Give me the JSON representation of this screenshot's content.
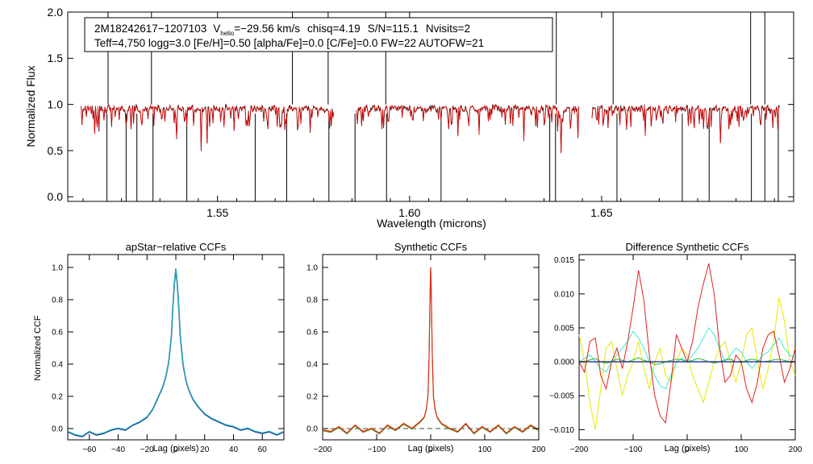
{
  "colors": {
    "spectrum": "#000000",
    "model": "#e00000",
    "ccf_main": "#1c2f8f",
    "ccf_cyan": "#1fbcbc",
    "ccf_red": "#e02020",
    "ccf_orange": "#e07818",
    "ccf_green": "#2fb82f",
    "ccf_yellow": "#e8e800",
    "ccf_aqua": "#40e8d0",
    "zero_line": "#444444"
  },
  "header": {
    "star_id": "2M18242617−1207103",
    "vhelio_label": "V",
    "vhelio_sub": "helio",
    "vhelio_value": "=−29.56 km/s",
    "chisq": "chisq=4.19",
    "sn": "S/N=115.1",
    "nvisits": "Nvisits=2",
    "params": "Teff=4,750 logg=3.0 [Fe/H]=0.50 [alpha/Fe]=0.0 [C/Fe]=0.0 FW=22 AUTOFW=21"
  },
  "chart_data": [
    {
      "id": "spectrum",
      "type": "line",
      "title": "",
      "xlabel": "Wavelength (microns)",
      "ylabel": "Normalized Flux",
      "xlim": [
        1.511,
        1.7
      ],
      "ylim": [
        -0.05,
        2.0
      ],
      "xticks": [
        1.55,
        1.6,
        1.65
      ],
      "xtick_labels": [
        "1.55",
        "1.60",
        "1.65"
      ],
      "yticks": [
        0.0,
        0.5,
        1.0,
        1.5,
        2.0
      ],
      "ytick_labels": [
        "0.0",
        "0.5",
        "1.0",
        "1.5",
        "2.0"
      ],
      "chip_ranges": [
        [
          1.5145,
          1.5805
        ],
        [
          1.5862,
          1.6442
        ],
        [
          1.6475,
          1.6965
        ]
      ],
      "series": [
        {
          "name": "observed",
          "color": "#000000"
        },
        {
          "name": "model",
          "color": "#e00000"
        }
      ],
      "spike_lines_up": [
        1.5215,
        1.5328,
        1.5695,
        1.5788,
        1.5938,
        1.6382,
        1.653,
        1.6888,
        1.6925
      ],
      "spike_lines_down": [
        1.5212,
        1.5262,
        1.529,
        1.5332,
        1.542,
        1.5598,
        1.568,
        1.579,
        1.5858,
        1.594,
        1.6082,
        1.6365,
        1.638,
        1.654,
        1.671,
        1.678,
        1.689,
        1.6925,
        1.696
      ]
    },
    {
      "id": "apstar-ccf",
      "type": "line",
      "title": "apStar−relative CCFs",
      "xlabel": "Lag (pixels)",
      "ylabel": "Normalized CCF",
      "xlim": [
        -75,
        75
      ],
      "ylim": [
        -0.07,
        1.08
      ],
      "xticks": [
        -60,
        -40,
        -20,
        0,
        20,
        40,
        60
      ],
      "xtick_labels": [
        "−60",
        "−40",
        "−20",
        "0",
        "20",
        "40",
        "60"
      ],
      "yticks": [
        0.0,
        0.2,
        0.4,
        0.6,
        0.8,
        1.0
      ],
      "ytick_labels": [
        "0.0",
        "0.2",
        "0.4",
        "0.6",
        "0.8",
        "1.0"
      ],
      "series": [
        {
          "name": "ccf-combined",
          "color": "#1c2f8f"
        },
        {
          "name": "ccf-visit",
          "color": "#1fbcbc"
        }
      ],
      "x": [
        -75,
        -70,
        -65,
        -60,
        -55,
        -50,
        -45,
        -40,
        -35,
        -30,
        -25,
        -20,
        -16,
        -12,
        -9,
        -7,
        -5,
        -3,
        -2,
        -1,
        0,
        1,
        2,
        3,
        5,
        7,
        9,
        12,
        16,
        20,
        25,
        30,
        35,
        40,
        45,
        50,
        55,
        60,
        65,
        70,
        75
      ],
      "values": [
        -0.02,
        -0.04,
        -0.05,
        -0.02,
        -0.04,
        -0.03,
        -0.01,
        0.0,
        -0.01,
        0.02,
        0.04,
        0.07,
        0.12,
        0.2,
        0.26,
        0.32,
        0.41,
        0.58,
        0.76,
        0.9,
        0.99,
        0.9,
        0.76,
        0.58,
        0.4,
        0.3,
        0.24,
        0.18,
        0.13,
        0.09,
        0.06,
        0.04,
        0.02,
        0.01,
        -0.01,
        0.0,
        -0.02,
        -0.03,
        -0.02,
        -0.04,
        -0.02
      ]
    },
    {
      "id": "synthetic-ccf",
      "type": "line",
      "title": "Synthetic CCFs",
      "xlabel": "Lag (pixels)",
      "ylabel": "",
      "xlim": [
        -200,
        200
      ],
      "ylim": [
        -0.07,
        1.08
      ],
      "xticks": [
        -200,
        -100,
        0,
        100,
        200
      ],
      "xtick_labels": [
        "−200",
        "−100",
        "0",
        "100",
        "200"
      ],
      "yticks": [
        0.0,
        0.2,
        0.4,
        0.6,
        0.8,
        1.0
      ],
      "ytick_labels": [
        "0.0",
        "0.2",
        "0.4",
        "0.6",
        "0.8",
        "1.0"
      ],
      "series": [
        {
          "name": "synthetic-red",
          "color": "#e02020"
        },
        {
          "name": "synthetic-orange",
          "color": "#e07818"
        },
        {
          "name": "synthetic-green",
          "color": "#2fb82f"
        }
      ],
      "x": [
        -200,
        -185,
        -170,
        -155,
        -140,
        -125,
        -110,
        -95,
        -80,
        -65,
        -50,
        -35,
        -20,
        -12,
        -8,
        -5,
        -3,
        -1,
        0,
        1,
        3,
        5,
        8,
        12,
        20,
        35,
        50,
        65,
        80,
        95,
        110,
        125,
        140,
        155,
        170,
        185,
        200
      ],
      "values": [
        -0.01,
        -0.02,
        0.01,
        -0.03,
        0.02,
        -0.02,
        0.0,
        -0.03,
        0.02,
        -0.01,
        0.03,
        0.0,
        0.04,
        0.07,
        0.12,
        0.2,
        0.45,
        0.85,
        1.0,
        0.85,
        0.45,
        0.2,
        0.12,
        0.07,
        0.03,
        0.0,
        -0.02,
        0.03,
        -0.03,
        0.01,
        -0.02,
        0.02,
        -0.03,
        0.01,
        -0.02,
        0.02,
        -0.01
      ],
      "zero_line": 0.0
    },
    {
      "id": "difference-ccf",
      "type": "line",
      "title": "Difference Synthetic CCFs",
      "xlabel": "Lag (pixels)",
      "ylabel": "",
      "xlim": [
        -200,
        200
      ],
      "ylim": [
        -0.0115,
        0.0158
      ],
      "xticks": [
        -200,
        -100,
        0,
        100,
        200
      ],
      "xtick_labels": [
        "−200",
        "−100",
        "0",
        "100",
        "200"
      ],
      "yticks": [
        -0.01,
        -0.005,
        0.0,
        0.005,
        0.01,
        0.015
      ],
      "ytick_labels": [
        "−0.010",
        "−0.005",
        "0.000",
        "0.005",
        "0.010",
        "0.015"
      ],
      "x": [
        -200,
        -190,
        -180,
        -170,
        -160,
        -150,
        -140,
        -130,
        -120,
        -110,
        -100,
        -90,
        -80,
        -70,
        -60,
        -50,
        -40,
        -30,
        -20,
        -10,
        0,
        10,
        20,
        30,
        40,
        50,
        60,
        70,
        80,
        90,
        100,
        110,
        120,
        130,
        140,
        150,
        160,
        170,
        180,
        190,
        200
      ],
      "series": [
        {
          "name": "diff-red",
          "color": "#e02020",
          "values": [
            0.0,
            -0.0015,
            0.003,
            0.0035,
            -0.002,
            -0.004,
            0.0,
            0.002,
            -0.001,
            0.003,
            0.008,
            0.0135,
            0.009,
            0.001,
            -0.005,
            -0.008,
            -0.009,
            -0.003,
            0.004,
            0.002,
            0.0,
            0.003,
            0.008,
            0.0115,
            0.0145,
            0.01,
            0.002,
            -0.003,
            -0.002,
            0.001,
            0.0,
            -0.004,
            -0.006,
            -0.003,
            0.002,
            0.004,
            0.0045,
            0.001,
            -0.003,
            -0.001,
            0.002
          ]
        },
        {
          "name": "diff-aqua",
          "color": "#40e8d0",
          "values": [
            0.0,
            0.0005,
            0.001,
            0.0,
            -0.001,
            -0.0015,
            0.0,
            0.001,
            0.002,
            0.003,
            0.0045,
            0.0035,
            0.002,
            0.0,
            -0.002,
            -0.0035,
            -0.004,
            -0.002,
            0.0,
            0.0005,
            0.0,
            0.001,
            0.002,
            0.0035,
            0.005,
            0.004,
            0.002,
            0.0,
            0.001,
            0.002,
            0.0015,
            0.0,
            -0.001,
            0.0,
            0.001,
            0.0015,
            0.0025,
            0.0035,
            0.002,
            0.001,
            0.0005
          ]
        },
        {
          "name": "diff-yellow",
          "color": "#e8e800",
          "values": [
            0.004,
            0.0,
            -0.006,
            -0.01,
            -0.004,
            0.002,
            0.003,
            -0.001,
            -0.005,
            -0.002,
            0.0,
            0.003,
            -0.001,
            -0.004,
            0.0,
            0.002,
            -0.002,
            -0.003,
            0.0,
            0.002,
            0.001,
            -0.002,
            -0.004,
            -0.006,
            -0.003,
            0.0,
            0.002,
            0.003,
            0.0,
            -0.003,
            0.0,
            0.004,
            0.005,
            0.0,
            -0.004,
            -0.001,
            0.003,
            0.0095,
            0.006,
            0.0,
            -0.002
          ]
        },
        {
          "name": "diff-green",
          "color": "#2fb82f",
          "values": [
            0.0,
            0.0,
            0.0003,
            0.0005,
            0.0,
            -0.0002,
            0.0,
            0.0004,
            0.0002,
            0.0,
            0.0003,
            0.0006,
            0.0002,
            0.0,
            -0.0004,
            -0.0003,
            0.0,
            0.0002,
            0.0004,
            0.0003,
            0.0,
            0.0002,
            0.0005,
            0.0003,
            0.0,
            -0.0002,
            0.0,
            0.0003,
            0.0004,
            0.0,
            -0.0001,
            0.0002,
            0.0004,
            0.0002,
            0.0,
            0.0001,
            0.0003,
            0.0004,
            0.0002,
            0.0,
            0.0
          ]
        },
        {
          "name": "diff-blue",
          "color": "#1c2f8f",
          "values": [
            0.0,
            0.0,
            0.0,
            0.0,
            0.0,
            0.0,
            0.0,
            0.0,
            0.0,
            0.0,
            0.0,
            0.0,
            0.0,
            0.0,
            0.0,
            0.0,
            0.0,
            0.0,
            0.0,
            0.0,
            0.0,
            0.0,
            0.0,
            0.0,
            0.0,
            0.0,
            0.0,
            0.0,
            0.0,
            0.0,
            0.0,
            0.0,
            0.0,
            0.0,
            0.0,
            0.0,
            0.0,
            0.0,
            0.0,
            0.0,
            0.0
          ]
        }
      ]
    }
  ]
}
